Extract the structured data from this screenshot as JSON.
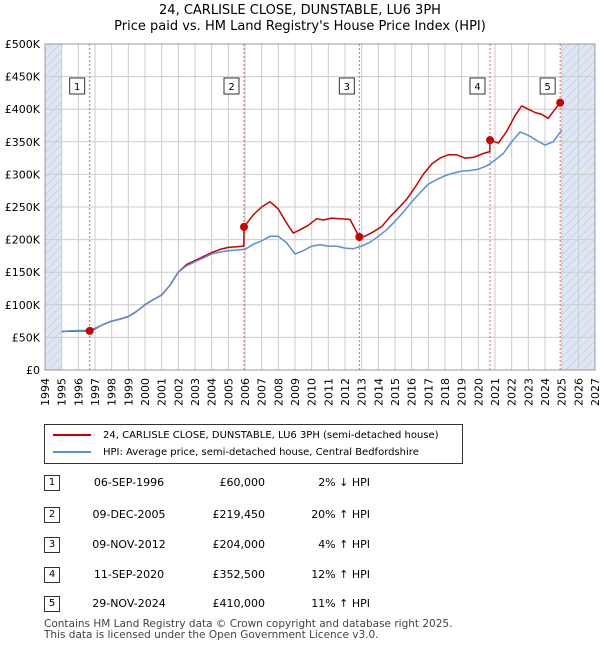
{
  "title_line1": "24, CARLISLE CLOSE, DUNSTABLE, LU6 3PH",
  "title_line2": "Price paid vs. HM Land Registry's House Price Index (HPI)",
  "colors": {
    "property": "#cc0000",
    "hpi": "#5b8fcf",
    "marker_line": "#dd6666",
    "shade": "#dde6f2",
    "grid": "#cccccc"
  },
  "chart_data": {
    "type": "line",
    "title": "Price paid vs. HM Land Registry's House Price Index (HPI)",
    "xlim": [
      1994,
      2027
    ],
    "ylim": [
      0,
      500000
    ],
    "x_ticks": [
      1994,
      1995,
      1996,
      1997,
      1998,
      1999,
      2000,
      2001,
      2002,
      2003,
      2004,
      2005,
      2006,
      2007,
      2008,
      2009,
      2010,
      2011,
      2012,
      2013,
      2014,
      2015,
      2016,
      2017,
      2018,
      2019,
      2020,
      2021,
      2022,
      2023,
      2024,
      2025,
      2026,
      2027
    ],
    "y_ticks": [
      {
        "value": 0,
        "label": "£0"
      },
      {
        "value": 50000,
        "label": "£50K"
      },
      {
        "value": 100000,
        "label": "£100K"
      },
      {
        "value": 150000,
        "label": "£150K"
      },
      {
        "value": 200000,
        "label": "£200K"
      },
      {
        "value": 250000,
        "label": "£250K"
      },
      {
        "value": 300000,
        "label": "£300K"
      },
      {
        "value": 350000,
        "label": "£350K"
      },
      {
        "value": 400000,
        "label": "£400K"
      },
      {
        "value": 450000,
        "label": "£450K"
      },
      {
        "value": 500000,
        "label": "£500K"
      }
    ],
    "shaded_ranges": [
      [
        1994,
        1995
      ],
      [
        2025,
        2027
      ]
    ],
    "series": [
      {
        "name": "24, CARLISLE CLOSE, DUNSTABLE, LU6 3PH (semi-detached house)",
        "key": "property",
        "x": [
          1995.0,
          1995.5,
          1996.0,
          1996.68,
          1997.0,
          1997.5,
          1998.0,
          1998.5,
          1999.0,
          1999.5,
          2000.0,
          2000.5,
          2001.0,
          2001.5,
          2002.0,
          2002.5,
          2003.0,
          2003.5,
          2004.0,
          2004.5,
          2005.0,
          2005.5,
          2005.93,
          2005.94,
          2006.5,
          2007.0,
          2007.5,
          2008.0,
          2008.5,
          2008.9,
          2009.3,
          2009.8,
          2010.3,
          2010.7,
          2011.2,
          2011.7,
          2012.3,
          2012.85,
          2013.2,
          2013.7,
          2014.2,
          2014.7,
          2015.2,
          2015.7,
          2016.2,
          2016.7,
          2017.2,
          2017.7,
          2018.2,
          2018.7,
          2019.2,
          2019.7,
          2020.3,
          2020.69,
          2020.7,
          2021.2,
          2021.7,
          2022.2,
          2022.6,
          2023.0,
          2023.4,
          2023.8,
          2024.2,
          2024.6,
          2024.91
        ],
        "y": [
          59000,
          59500,
          59800,
          60000,
          63000,
          70000,
          75000,
          78000,
          82000,
          90000,
          100000,
          108000,
          115000,
          130000,
          150000,
          162000,
          168000,
          174000,
          180000,
          185000,
          188000,
          189000,
          190000,
          219450,
          238000,
          250000,
          258000,
          247000,
          225000,
          210000,
          215000,
          222000,
          232000,
          230000,
          233000,
          232000,
          231000,
          204000,
          205000,
          212000,
          220000,
          235000,
          248000,
          262000,
          280000,
          300000,
          316000,
          325000,
          330000,
          330000,
          325000,
          326000,
          332000,
          335000,
          352500,
          348000,
          366000,
          390000,
          405000,
          400000,
          395000,
          392000,
          386000,
          400000,
          410000
        ]
      },
      {
        "name": "HPI: Average price, semi-detached house, Central Bedfordshire",
        "key": "hpi",
        "x": [
          1995.0,
          1995.5,
          1996.0,
          1996.5,
          1997.0,
          1997.5,
          1998.0,
          1998.5,
          1999.0,
          1999.5,
          2000.0,
          2000.5,
          2001.0,
          2001.5,
          2002.0,
          2002.5,
          2003.0,
          2003.5,
          2004.0,
          2004.5,
          2005.0,
          2005.5,
          2006.0,
          2006.5,
          2007.0,
          2007.5,
          2008.0,
          2008.5,
          2009.0,
          2009.5,
          2010.0,
          2010.5,
          2011.0,
          2011.5,
          2012.0,
          2012.5,
          2013.0,
          2013.5,
          2014.0,
          2014.5,
          2015.0,
          2015.5,
          2016.0,
          2016.5,
          2017.0,
          2017.5,
          2018.0,
          2018.5,
          2019.0,
          2019.5,
          2020.0,
          2020.5,
          2021.0,
          2021.5,
          2022.0,
          2022.5,
          2023.0,
          2023.5,
          2024.0,
          2024.5,
          2025.0
        ],
        "y": [
          59000,
          60000,
          60500,
          61000,
          64000,
          70000,
          75000,
          78000,
          82000,
          90000,
          100000,
          108000,
          115000,
          130000,
          150000,
          160000,
          166000,
          172000,
          178000,
          181000,
          183000,
          184000,
          185000,
          193000,
          198000,
          205000,
          205000,
          195000,
          178000,
          183000,
          190000,
          192000,
          190000,
          190000,
          187000,
          186000,
          190000,
          196000,
          205000,
          215000,
          228000,
          242000,
          258000,
          272000,
          285000,
          292000,
          298000,
          302000,
          305000,
          306000,
          308000,
          313000,
          322000,
          332000,
          350000,
          365000,
          360000,
          352000,
          345000,
          350000,
          368000
        ]
      }
    ],
    "sales": [
      {
        "n": "1",
        "x": 1996.68,
        "y": 60000
      },
      {
        "n": "2",
        "x": 2005.94,
        "y": 219450
      },
      {
        "n": "3",
        "x": 2012.86,
        "y": 204000
      },
      {
        "n": "4",
        "x": 2020.7,
        "y": 352500
      },
      {
        "n": "5",
        "x": 2024.91,
        "y": 410000
      }
    ]
  },
  "legend": {
    "property_label": "24, CARLISLE CLOSE, DUNSTABLE, LU6 3PH (semi-detached house)",
    "hpi_label": "HPI: Average price, semi-detached house, Central Bedfordshire"
  },
  "sales_table": [
    {
      "n": "1",
      "date": "06-SEP-1996",
      "price": "£60,000",
      "hpi": "2% ↓ HPI"
    },
    {
      "n": "2",
      "date": "09-DEC-2005",
      "price": "£219,450",
      "hpi": "20% ↑ HPI"
    },
    {
      "n": "3",
      "date": "09-NOV-2012",
      "price": "£204,000",
      "hpi": "4% ↑ HPI"
    },
    {
      "n": "4",
      "date": "11-SEP-2020",
      "price": "£352,500",
      "hpi": "12% ↑ HPI"
    },
    {
      "n": "5",
      "date": "29-NOV-2024",
      "price": "£410,000",
      "hpi": "11% ↑ HPI"
    }
  ],
  "footer": {
    "line1": "Contains HM Land Registry data © Crown copyright and database right 2025.",
    "line2": "This data is licensed under the Open Government Licence v3.0."
  }
}
